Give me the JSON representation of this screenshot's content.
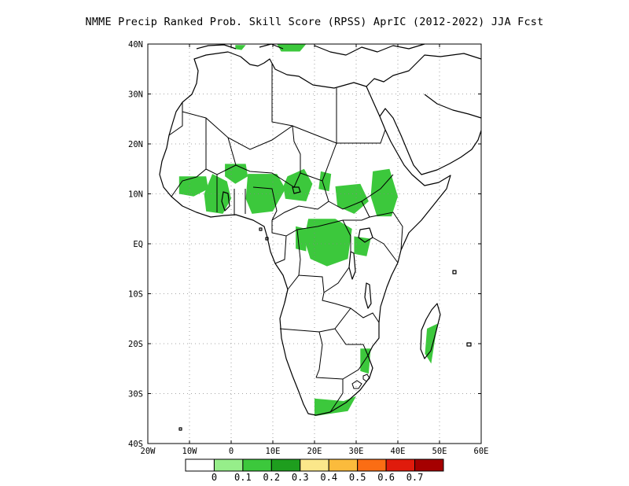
{
  "title": "NMME Precip Ranked Prob. Skill Score (RPSS) AprIC (2012-2022) JJA Fcst",
  "map": {
    "lon_range": [
      -20,
      60
    ],
    "lat_range": [
      -40,
      40
    ],
    "lon_ticks": [
      {
        "value": -20,
        "label": "20W"
      },
      {
        "value": -10,
        "label": "10W"
      },
      {
        "value": 0,
        "label": "0"
      },
      {
        "value": 10,
        "label": "10E"
      },
      {
        "value": 20,
        "label": "20E"
      },
      {
        "value": 30,
        "label": "30E"
      },
      {
        "value": 40,
        "label": "40E"
      },
      {
        "value": 50,
        "label": "50E"
      },
      {
        "value": 60,
        "label": "60E"
      }
    ],
    "lat_ticks": [
      {
        "value": 40,
        "label": "40N"
      },
      {
        "value": 30,
        "label": "30N"
      },
      {
        "value": 20,
        "label": "20N"
      },
      {
        "value": 10,
        "label": "10N"
      },
      {
        "value": 0,
        "label": "EQ"
      },
      {
        "value": -10,
        "label": "10S"
      },
      {
        "value": -20,
        "label": "20S"
      },
      {
        "value": -30,
        "label": "30S"
      },
      {
        "value": -40,
        "label": "40S"
      }
    ],
    "grid": "dotted"
  },
  "colorbar": {
    "colors": [
      "#ffffff",
      "#96ee8a",
      "#3cc83c",
      "#1e9e1e",
      "#fbe78a",
      "#fbbb3c",
      "#fb6d14",
      "#e01b0c",
      "#a50000"
    ],
    "labels": [
      "0",
      "0.1",
      "0.2",
      "0.3",
      "0.4",
      "0.5",
      "0.6",
      "0.7"
    ]
  },
  "skill_regions": [
    {
      "level": "0.1",
      "lonlat": [
        [
          -12.5,
          13.5
        ],
        [
          -6,
          13.5
        ],
        [
          -5.5,
          11
        ],
        [
          -9,
          9.5
        ],
        [
          -12.5,
          10
        ]
      ]
    },
    {
      "level": "0.1",
      "lonlat": [
        [
          -4.5,
          14
        ],
        [
          -1,
          12.5
        ],
        [
          0,
          9
        ],
        [
          -2,
          6
        ],
        [
          -6,
          6.5
        ],
        [
          -6.5,
          10
        ]
      ]
    },
    {
      "level": "0.1",
      "lonlat": [
        [
          -1.5,
          16
        ],
        [
          3.5,
          16
        ],
        [
          4,
          13.5
        ],
        [
          1,
          12
        ],
        [
          -1.5,
          13.5
        ]
      ]
    },
    {
      "level": "0.1",
      "lonlat": [
        [
          4,
          14
        ],
        [
          11,
          14
        ],
        [
          13,
          11
        ],
        [
          10,
          6.5
        ],
        [
          5,
          6
        ],
        [
          3.5,
          9
        ]
      ]
    },
    {
      "level": "0.1",
      "lonlat": [
        [
          13.5,
          13.5
        ],
        [
          17.5,
          15
        ],
        [
          19.5,
          12
        ],
        [
          18,
          8.5
        ],
        [
          13,
          9
        ],
        [
          12.5,
          11.5
        ]
      ]
    },
    {
      "level": "0.1",
      "lonlat": [
        [
          21.5,
          14.5
        ],
        [
          24,
          14
        ],
        [
          23.5,
          10.5
        ],
        [
          21,
          11
        ]
      ]
    },
    {
      "level": "0.1",
      "lonlat": [
        [
          25,
          11.5
        ],
        [
          31,
          12
        ],
        [
          33,
          8.5
        ],
        [
          29.5,
          6
        ],
        [
          25.5,
          7.5
        ]
      ]
    },
    {
      "level": "0.1",
      "lonlat": [
        [
          34,
          14.5
        ],
        [
          38,
          15
        ],
        [
          40,
          9.5
        ],
        [
          38.5,
          5.5
        ],
        [
          35,
          5.5
        ],
        [
          33.5,
          9.5
        ]
      ]
    },
    {
      "level": "0.1",
      "lonlat": [
        [
          18.5,
          5
        ],
        [
          25,
          5
        ],
        [
          29,
          3
        ],
        [
          28,
          -3
        ],
        [
          23,
          -4.5
        ],
        [
          19,
          -3
        ],
        [
          17.5,
          1
        ]
      ]
    },
    {
      "level": "0.1",
      "lonlat": [
        [
          15.5,
          3.5
        ],
        [
          18,
          3
        ],
        [
          18,
          -1.5
        ],
        [
          15.5,
          -1
        ]
      ]
    },
    {
      "level": "0.1",
      "lonlat": [
        [
          29.5,
          1.5
        ],
        [
          33.5,
          1
        ],
        [
          32.5,
          -2.5
        ],
        [
          29.5,
          -2
        ]
      ]
    },
    {
      "level": "0.1",
      "lonlat": [
        [
          47,
          -17
        ],
        [
          49.5,
          -16
        ],
        [
          48,
          -24
        ],
        [
          46.5,
          -22
        ]
      ]
    },
    {
      "level": "0.1",
      "lonlat": [
        [
          31,
          -21
        ],
        [
          33.5,
          -21
        ],
        [
          33,
          -26
        ],
        [
          31,
          -25.5
        ]
      ]
    },
    {
      "level": "0.1",
      "lonlat": [
        [
          20,
          -31
        ],
        [
          27,
          -31.5
        ],
        [
          30,
          -30.5
        ],
        [
          28,
          -33.5
        ],
        [
          24,
          -34
        ],
        [
          20,
          -34.5
        ]
      ]
    },
    {
      "level": "0.1",
      "lonlat": [
        [
          11,
          40
        ],
        [
          18,
          40
        ],
        [
          16.5,
          38.5
        ],
        [
          12,
          38.5
        ]
      ]
    },
    {
      "level": "0.1",
      "lonlat": [
        [
          1,
          39.8
        ],
        [
          3.5,
          39.8
        ],
        [
          2.5,
          38.8
        ],
        [
          1,
          39
        ]
      ]
    }
  ]
}
